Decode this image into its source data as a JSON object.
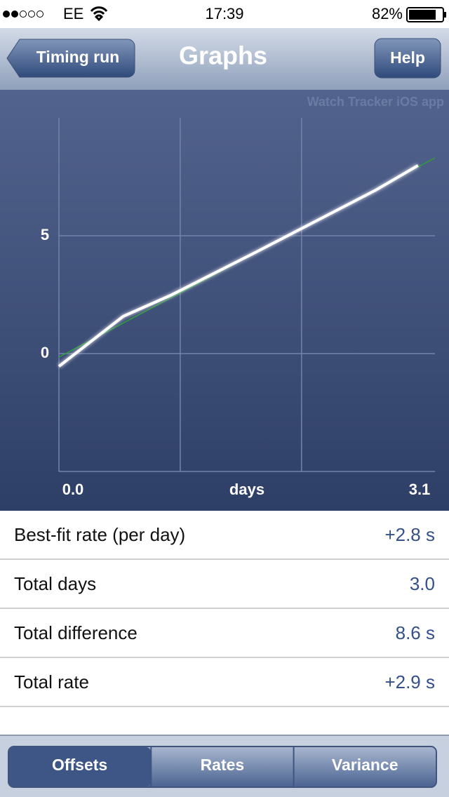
{
  "status_bar": {
    "carrier": "EE",
    "time": "17:39",
    "battery": "82%"
  },
  "nav": {
    "back": "Timing run",
    "title": "Graphs",
    "help": "Help"
  },
  "watermark": "Watch Tracker iOS app",
  "chart_data": {
    "type": "line",
    "x_label": "days",
    "xlim": [
      0,
      3.1
    ],
    "xticks": [
      {
        "value": 0,
        "label": "0.0"
      },
      {
        "value": 3.1,
        "label": "3.1"
      }
    ],
    "xgrid": [
      1,
      2
    ],
    "ylim": [
      -5,
      10
    ],
    "yticks": [
      0,
      5
    ],
    "series": [
      {
        "color": "#2e9e3a",
        "x": [
          0,
          3.1
        ],
        "values": [
          -0.15,
          8.3
        ]
      },
      {
        "color": "#ffffff",
        "x": [
          0,
          0.53,
          0.92,
          1.63,
          2.61,
          2.96
        ],
        "values": [
          -0.54,
          1.58,
          2.47,
          4.32,
          6.93,
          7.98
        ]
      }
    ]
  },
  "table": {
    "rows": [
      [
        "Best-fit rate (per day)",
        "+2.8 s"
      ],
      [
        "Total days",
        "3.0"
      ],
      [
        "Total difference",
        "8.6 s"
      ],
      [
        "Total rate",
        "+2.9 s"
      ]
    ]
  },
  "tabs": [
    "Offsets",
    "Rates",
    "Variance"
  ]
}
